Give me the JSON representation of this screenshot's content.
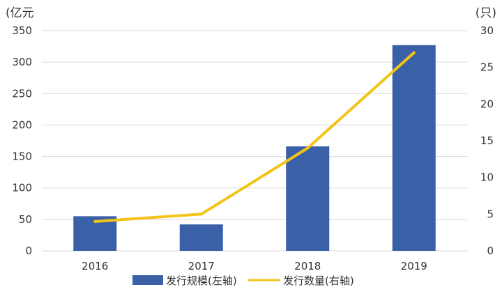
{
  "chart_data": {
    "type": "bar+line",
    "categories": [
      "2016",
      "2017",
      "2018",
      "2019"
    ],
    "series": [
      {
        "name": "发行规模(左轴)",
        "type": "bar",
        "axis": "left",
        "values": [
          55,
          42,
          166,
          327
        ],
        "color": "#3A61A8"
      },
      {
        "name": "发行数量(右轴)",
        "type": "line",
        "axis": "right",
        "values": [
          4,
          5,
          14,
          27
        ],
        "color": "#F2C418"
      }
    ],
    "y_left": {
      "unit": "(亿元",
      "ylim": [
        0,
        350
      ],
      "ticks": [
        "0",
        "50",
        "100",
        "150",
        "200",
        "250",
        "300",
        "350"
      ]
    },
    "y_right": {
      "unit": "(只)",
      "ylim": [
        0,
        30
      ],
      "ticks": [
        "0",
        "5",
        "10",
        "15",
        "20",
        "25",
        "30"
      ]
    },
    "grid": true,
    "grid_color": "#d9d9d9",
    "legend": {
      "placement": "bottom-center"
    }
  }
}
